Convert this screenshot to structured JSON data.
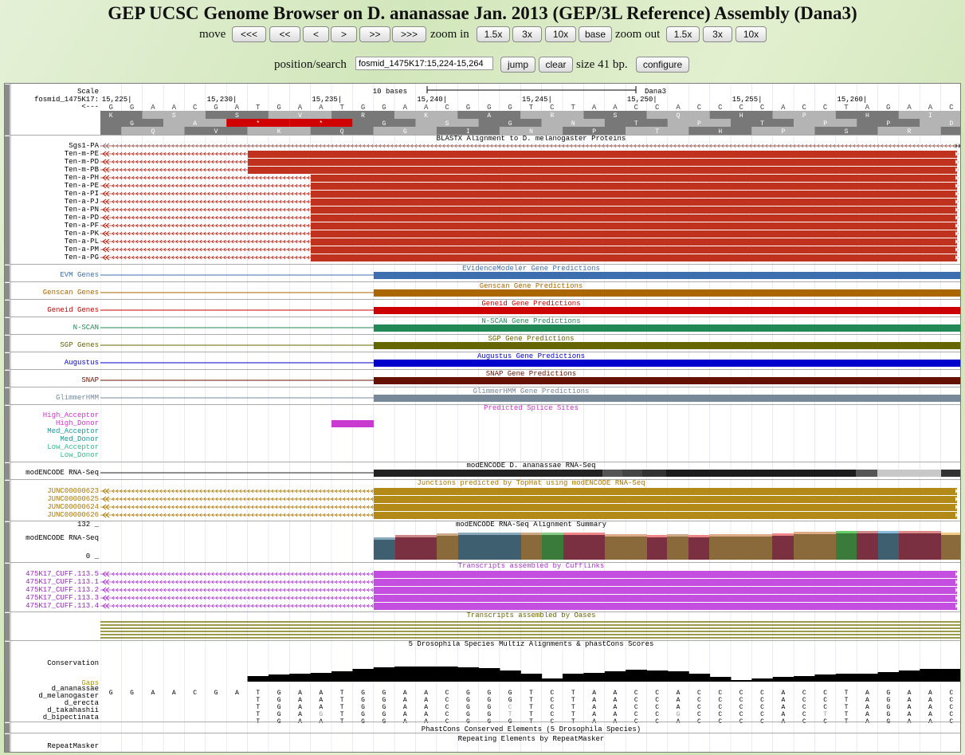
{
  "title": "GEP UCSC Genome Browser on D. ananassae Jan. 2013 (GEP/3L Reference) Assembly (Dana3)",
  "nav": {
    "move_label": "move",
    "move_buttons": [
      "<<<",
      "<<",
      "<",
      ">",
      ">>",
      ">>>"
    ],
    "zoom_in_label": "zoom in",
    "zoom_in_buttons": [
      "1.5x",
      "3x",
      "10x"
    ],
    "base_button": "base",
    "zoom_out_label": "zoom out",
    "zoom_out_buttons": [
      "1.5x",
      "3x",
      "10x"
    ],
    "position_label": "position/search",
    "position_value": "fosmid_1475K17:15,224-15,264",
    "jump_button": "jump",
    "clear_button": "clear",
    "size_text": "size 41 bp.",
    "configure_button": "configure"
  },
  "ruler": {
    "scale_label": "Scale",
    "chrom_label": "fosmid_1475K17:",
    "strand_label": "<---",
    "scale_text": "10 bases",
    "assembly": "Dana3",
    "ticks": [
      {
        "label": "15,225|",
        "pos": 15225
      },
      {
        "label": "15,230|",
        "pos": 15230
      },
      {
        "label": "15,235|",
        "pos": 15235
      },
      {
        "label": "15,240|",
        "pos": 15240
      },
      {
        "label": "15,245|",
        "pos": 15245
      },
      {
        "label": "15,250|",
        "pos": 15250
      },
      {
        "label": "15,255|",
        "pos": 15255
      },
      {
        "label": "15,260|",
        "pos": 15260
      }
    ],
    "sequence": "GGAACGATGAATGGAACGGGTCTAACCACCCCACCTAGAAC",
    "aa_frame1": [
      "K",
      "S",
      "S",
      "V",
      "R",
      "K",
      "A",
      "R",
      "S",
      "Q",
      "H",
      "P",
      "H",
      "I",
      "K"
    ],
    "aa_frame2": [
      "G",
      "A",
      "*",
      "*",
      "G",
      "S",
      "G",
      "N",
      "T",
      "P",
      "T",
      "P",
      "P",
      "D",
      "Q"
    ],
    "aa_frame3": [
      "R",
      "Q",
      "V",
      "K",
      "Q",
      "G",
      "I",
      "N",
      "P",
      "T",
      "H",
      "P",
      "S",
      "R",
      "P"
    ]
  },
  "tracks": {
    "blastx": {
      "title": "BLASTX Alignment to D. melanogaster Proteins",
      "items": [
        "Sgs1-PA",
        "Ten-m-PE",
        "Ten-m-PD",
        "Ten-m-PB",
        "Ten-a-PH",
        "Ten-a-PE",
        "Ten-a-PI",
        "Ten-a-PJ",
        "Ten-a-PN",
        "Ten-a-PD",
        "Ten-a-PF",
        "Ten-a-PK",
        "Ten-a-PL",
        "Ten-a-PM",
        "Ten-a-PG"
      ]
    },
    "genes": [
      {
        "label": "EVM Genes",
        "title": "EVidenceModeler Gene Predictions",
        "color": "#3d6faf"
      },
      {
        "label": "Genscan Genes",
        "title": "Genscan Gene Predictions",
        "color": "#aa6600"
      },
      {
        "label": "Geneid Genes",
        "title": "Geneid Gene Predictions",
        "color": "#cc0000"
      },
      {
        "label": "N-SCAN",
        "title": "N-SCAN Gene Predictions",
        "color": "#228855"
      },
      {
        "label": "SGP Genes",
        "title": "SGP Gene Predictions",
        "color": "#666600"
      },
      {
        "label": "Augustus",
        "title": "Augustus Gene Predictions",
        "color": "#0000cc"
      },
      {
        "label": "SNAP",
        "title": "SNAP Gene Predictions",
        "color": "#661100"
      },
      {
        "label": "GlimmerHMM",
        "title": "GlimmerHMM Gene Predictions",
        "color": "#778899"
      }
    ],
    "splice": {
      "title": "Predicted Splice Sites",
      "items": [
        {
          "label": "High_Acceptor",
          "color": "#cc33cc"
        },
        {
          "label": "High_Donor",
          "color": "#cc33cc"
        },
        {
          "label": "Med_Acceptor",
          "color": "#11999a"
        },
        {
          "label": "Med_Donor",
          "color": "#11999a"
        },
        {
          "label": "Low_Acceptor",
          "color": "#33bb88"
        },
        {
          "label": "Low_Donor",
          "color": "#33bb88"
        }
      ]
    },
    "rnaseq": {
      "label": "modENCODE RNA-Seq",
      "title": "modENCODE D. ananassae RNA-Seq"
    },
    "junctions": {
      "title": "Junctions predicted by TopHat using modENCODE RNA-Seq",
      "items": [
        "JUNC00000623",
        "JUNC00000625",
        "JUNC00000624",
        "JUNC00000626"
      ]
    },
    "summary": {
      "label": "modENCODE RNA-Seq",
      "title": "modENCODE RNA-Seq Alignment Summary",
      "max_label": "132 _",
      "min_label": "0 _"
    },
    "cufflinks": {
      "title": "Transcripts assembled by Cufflinks",
      "items": [
        "475K17_CUFF.113.5",
        "475K17_CUFF.113.1",
        "475K17_CUFF.113.2",
        "475K17_CUFF.113.3",
        "475K17_CUFF.113.4"
      ]
    },
    "oases": {
      "title": "Transcripts assembled by Oases"
    },
    "multiz": {
      "title": "5 Drosophila Species Multiz Alignments & phastCons Scores",
      "conservation_label": "Conservation",
      "gaps_label": "Gaps",
      "species": [
        {
          "name": "d_ananassae",
          "seq": "GGAACGATGAATGGAACGGGTCTAACCACCCCACCTAGAAC"
        },
        {
          "name": "d_melanogaster",
          "seq": ".......TGAATGGAACGGGTCTAACCACCCCACCTAGAAC"
        },
        {
          "name": "d_erecta",
          "seq": ".......TGAATGGAACGGCTCTAACCACCCCACCTAGAAC"
        },
        {
          "name": "d_takahashii",
          "seq": ".......TGAGTGGAACGGTTCTAACCGCCCCACTTAGAAC"
        },
        {
          "name": "d_bipectinata",
          "seq": ".......TGAATGGAACGGGTCTAACCACCCCACCTAGAAC"
        }
      ]
    },
    "phastcons": {
      "title": "PhastCons Conserved Elements (5 Drosophila Species)"
    },
    "repeatmasker": {
      "label": "RepeatMasker",
      "title": "Repeating Elements by RepeatMasker"
    }
  }
}
